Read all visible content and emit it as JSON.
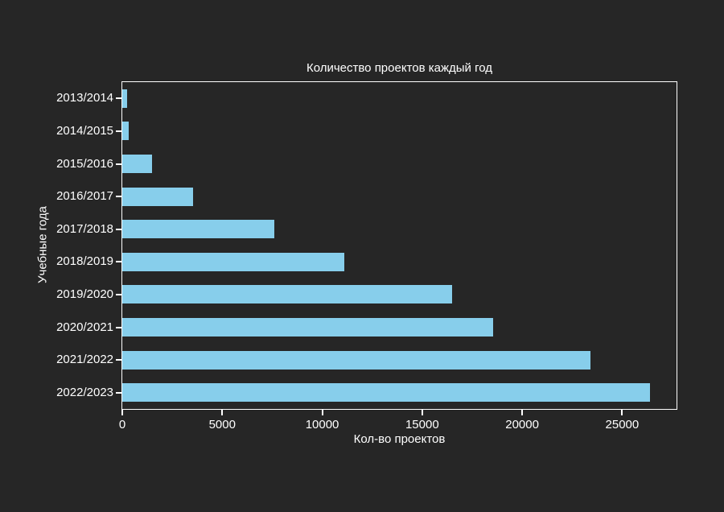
{
  "figure": {
    "background_color": "#262626",
    "axis_color": "#FFFFFF",
    "text_color": "#FFFFFF"
  },
  "chart_data": {
    "type": "bar",
    "orientation": "horizontal",
    "title": "Количество проектов каждый год",
    "xlabel": "Кол-во проектов",
    "ylabel": "Учебные года",
    "categories": [
      "2013/2014",
      "2014/2015",
      "2015/2016",
      "2016/2017",
      "2017/2018",
      "2018/2019",
      "2019/2020",
      "2020/2021",
      "2021/2022",
      "2022/2023"
    ],
    "values": [
      240,
      320,
      1500,
      3550,
      7600,
      11100,
      16500,
      18550,
      23400,
      26400
    ],
    "xticks": [
      0,
      5000,
      10000,
      15000,
      20000,
      25000
    ],
    "xlim": [
      0,
      27720
    ],
    "grid": false,
    "legend": "none",
    "bar_color": "#87CEEB",
    "bar_height_fraction": 0.57
  }
}
